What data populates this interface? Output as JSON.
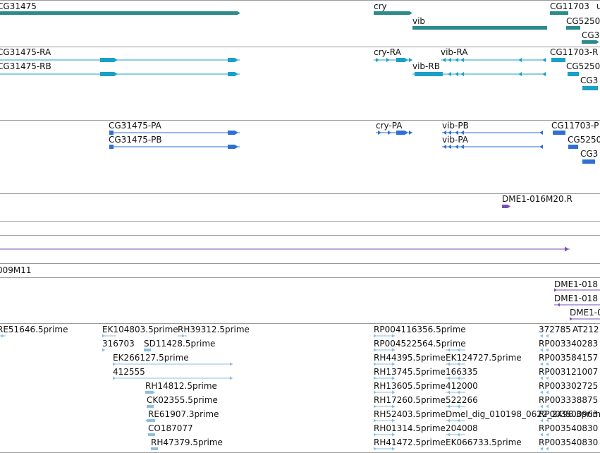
{
  "colors": {
    "gene": "#2a8a8c",
    "transcript": "#1aa0c8",
    "protein": "#2f6fd6",
    "clone": "#7a4fb3",
    "est": "#8cbfe0",
    "separator": "#9a9a9a"
  },
  "tracks": {
    "genes": [
      "CG31475",
      "cry",
      "vib",
      "CG11703",
      "CG5250",
      "CG3"
    ],
    "transcripts": [
      "CG31475-RA",
      "CG31475-RB",
      "cry-RA",
      "vib-RA",
      "vib-RB",
      "CG11703-R",
      "CG5250",
      "CG3"
    ],
    "proteins": [
      "CG31475-PA",
      "CG31475-PB",
      "cry-PA",
      "vib-PB",
      "vib-PA",
      "CG11703-P",
      "CG5250",
      "CG3"
    ],
    "clones": [
      "DME1-016M20.R",
      "009M11",
      "DME1-018",
      "DME1-018",
      "DME1-0"
    ],
    "est_col1": [
      "RE51646.5prime"
    ],
    "est_col2": [
      "EK104803.5prime",
      "RH39312.5prime",
      "316703",
      "SD11428.5prime",
      "EK266127.5prime",
      "412555",
      "RH14812.5prime",
      "CK02355.5prime",
      "RE61907.3prime",
      "CO187077",
      "RH47379.5prime"
    ],
    "est_col3": [
      "RP004116356.5prime",
      "RP004522564.5prime",
      "RH44395.5prime",
      "EK124727.5prime",
      "RH13745.5prime",
      "166335",
      "RH13605.5prime",
      "412000",
      "RH17260.5prime",
      "522266",
      "RH52403.5prime",
      "Dmel_dig_010198_0622_2496.3prime",
      "RH01314.5prime",
      "204008",
      "RH41472.5prime",
      "EK066733.5prime"
    ],
    "est_col4": [
      "372785",
      "AT212",
      "RP003340283",
      "RP003584157",
      "RP003121007",
      "RP003302725",
      "RP003338875",
      "RP003500963",
      "RP003540830"
    ]
  }
}
